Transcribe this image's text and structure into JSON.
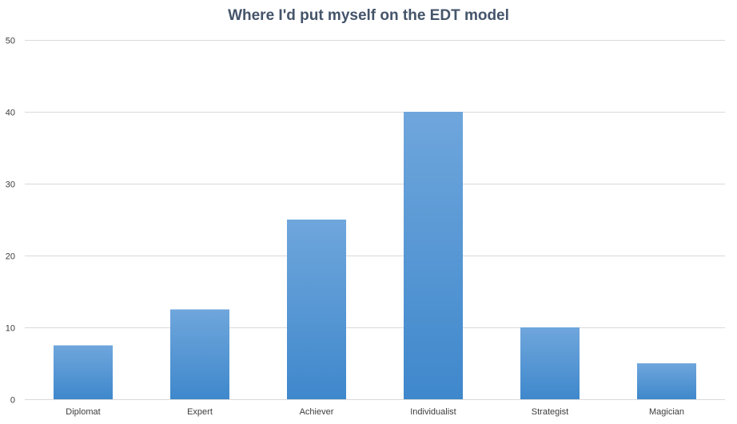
{
  "chart_data": {
    "type": "bar",
    "title": "Where I'd put myself on the EDT model",
    "xlabel": "",
    "ylabel": "",
    "categories": [
      "Diplomat",
      "Expert",
      "Achiever",
      "Individualist",
      "Strategist",
      "Magician"
    ],
    "values": [
      7.5,
      12.5,
      25,
      40,
      10,
      5
    ],
    "ylim": [
      0,
      50
    ],
    "yticks": [
      0,
      10,
      20,
      30,
      40,
      50
    ],
    "grid": true,
    "legend": "none",
    "bar_color_top": "#6fa6dc",
    "bar_color_bottom": "#3f88cc",
    "title_color": "#44546a",
    "gridline_color": "#d9d9d9"
  }
}
